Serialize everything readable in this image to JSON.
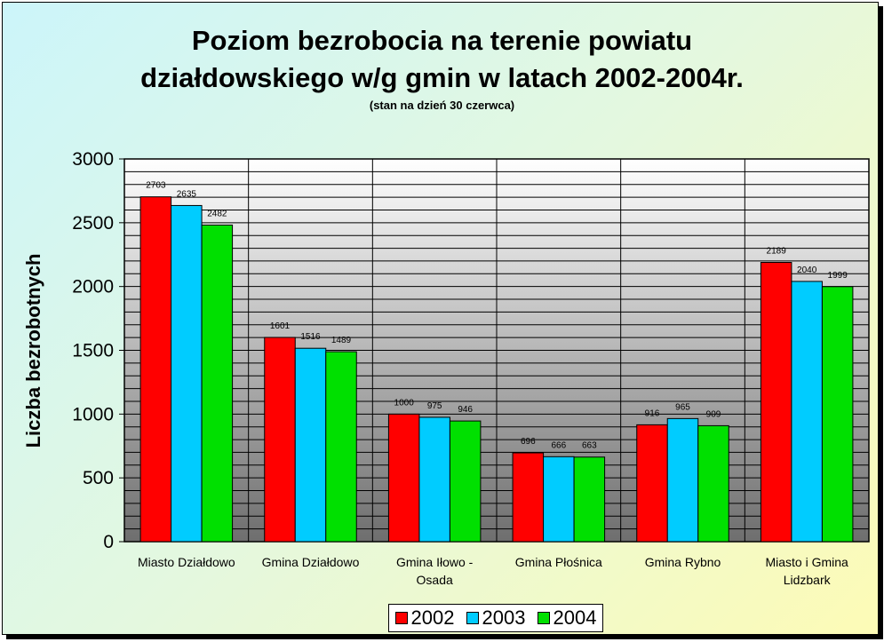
{
  "chart_data": {
    "type": "bar",
    "title_line1": "Poziom bezrobocia na terenie powiatu",
    "title_line2": "działdowskiego w/g gmin w latach 2002-2004r.",
    "subtitle": "(stan na dzień 30 czerwca)",
    "ylabel": "Liczba bezrobotnych",
    "xlabel": "",
    "ylim": [
      0,
      3000
    ],
    "yticks": [
      0,
      500,
      1000,
      1500,
      2000,
      2500,
      3000
    ],
    "categories": [
      [
        "Miasto Działdowo"
      ],
      [
        "Gmina Działdowo"
      ],
      [
        "Gmina Iłowo -",
        "Osada"
      ],
      [
        "Gmina Płośnica"
      ],
      [
        "Gmina Rybno"
      ],
      [
        "Miasto i Gmina",
        "Lidzbark"
      ]
    ],
    "series": [
      {
        "name": "2002",
        "color": "#ff0000",
        "values": [
          2703,
          1601,
          1000,
          696,
          916,
          2189
        ]
      },
      {
        "name": "2003",
        "color": "#00ccff",
        "values": [
          2635,
          1516,
          975,
          666,
          965,
          2040
        ]
      },
      {
        "name": "2004",
        "color": "#00e000",
        "values": [
          2482,
          1489,
          946,
          663,
          909,
          1999
        ]
      }
    ],
    "grid": true,
    "legend_position": "bottom"
  }
}
